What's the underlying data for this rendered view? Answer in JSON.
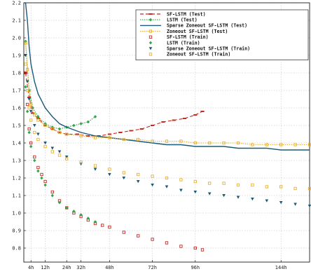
{
  "chart_data": {
    "type": "line",
    "xlabel": "",
    "ylabel": "",
    "title": "",
    "xlim": [
      0,
      160
    ],
    "ylim": [
      0.72,
      2.2
    ],
    "x_ticks": [
      {
        "value": 4,
        "label": "4h"
      },
      {
        "value": 12,
        "label": "12h"
      },
      {
        "value": 24,
        "label": "24h"
      },
      {
        "value": 32,
        "label": "32h"
      },
      {
        "value": 48,
        "label": "48h"
      },
      {
        "value": 72,
        "label": "72h"
      },
      {
        "value": 96,
        "label": "96h"
      },
      {
        "value": 144,
        "label": "144h"
      }
    ],
    "y_ticks": [
      0.8,
      0.9,
      1.0,
      1.1,
      1.2,
      1.3,
      1.4,
      1.5,
      1.6,
      1.7,
      1.8,
      1.9,
      2.0,
      2.1,
      2.2
    ],
    "grid": true,
    "legend_position": "top-right",
    "series": [
      {
        "name": "SF-LSTM (Test)",
        "role": "test",
        "color": "#c8281e",
        "marker": "dash",
        "x": [
          1,
          3,
          5,
          8,
          12,
          16,
          20,
          24,
          30,
          36,
          42,
          48,
          54,
          60,
          66,
          72,
          78,
          84,
          90,
          96,
          100
        ],
        "y": [
          1.8,
          1.66,
          1.57,
          1.54,
          1.5,
          1.48,
          1.46,
          1.45,
          1.45,
          1.44,
          1.44,
          1.45,
          1.46,
          1.47,
          1.48,
          1.5,
          1.52,
          1.53,
          1.54,
          1.56,
          1.58
        ]
      },
      {
        "name": "LSTM (Test)",
        "role": "test",
        "color": "#2ea84a",
        "marker": "diamond",
        "x": [
          1,
          3,
          5,
          8,
          12,
          16,
          20,
          24,
          28,
          32,
          36,
          40
        ],
        "y": [
          1.98,
          1.7,
          1.6,
          1.55,
          1.51,
          1.49,
          1.48,
          1.49,
          1.5,
          1.51,
          1.52,
          1.55
        ]
      },
      {
        "name": "Sparse Zoneout SF-LSTM (Test)",
        "role": "test",
        "color": "#1a5a78",
        "marker": "line",
        "x": [
          1,
          2,
          3,
          4,
          6,
          8,
          12,
          16,
          20,
          24,
          32,
          40,
          48,
          56,
          64,
          72,
          80,
          88,
          96,
          104,
          112,
          120,
          128,
          136,
          144,
          152,
          160
        ],
        "y": [
          2.2,
          2.1,
          1.95,
          1.85,
          1.75,
          1.68,
          1.6,
          1.55,
          1.51,
          1.49,
          1.46,
          1.44,
          1.43,
          1.42,
          1.41,
          1.4,
          1.39,
          1.39,
          1.38,
          1.38,
          1.38,
          1.37,
          1.37,
          1.37,
          1.36,
          1.36,
          1.36
        ]
      },
      {
        "name": "Zoneout SF-LSTM (Test)",
        "role": "test",
        "color": "#e8b030",
        "marker": "square",
        "x": [
          1,
          2,
          3,
          4,
          6,
          8,
          12,
          16,
          20,
          24,
          32,
          40,
          48,
          56,
          64,
          72,
          80,
          88,
          96,
          104,
          112,
          120,
          128,
          136,
          144,
          152,
          160
        ],
        "y": [
          1.97,
          1.82,
          1.7,
          1.62,
          1.56,
          1.53,
          1.5,
          1.48,
          1.46,
          1.45,
          1.44,
          1.43,
          1.43,
          1.42,
          1.42,
          1.41,
          1.41,
          1.41,
          1.4,
          1.4,
          1.4,
          1.4,
          1.39,
          1.39,
          1.39,
          1.39,
          1.39
        ]
      },
      {
        "name": "SF-LSTM (Train)",
        "role": "train",
        "color": "#c8281e",
        "marker": "square",
        "x": [
          1,
          2,
          3,
          4,
          6,
          8,
          10,
          12,
          16,
          20,
          24,
          28,
          32,
          36,
          40,
          44,
          48,
          56,
          64,
          72,
          80,
          88,
          96,
          100
        ],
        "y": [
          1.8,
          1.62,
          1.48,
          1.4,
          1.32,
          1.26,
          1.22,
          1.18,
          1.12,
          1.07,
          1.03,
          1.0,
          0.98,
          0.96,
          0.94,
          0.93,
          0.92,
          0.89,
          0.87,
          0.85,
          0.83,
          0.81,
          0.8,
          0.79
        ]
      },
      {
        "name": "LSTM (Train)",
        "role": "train",
        "color": "#2ea84a",
        "marker": "diamond",
        "x": [
          1,
          2,
          3,
          4,
          6,
          8,
          10,
          12,
          16,
          20,
          24,
          28,
          32,
          36,
          40
        ],
        "y": [
          1.72,
          1.58,
          1.46,
          1.38,
          1.3,
          1.24,
          1.2,
          1.16,
          1.1,
          1.06,
          1.03,
          1.01,
          0.99,
          0.97,
          0.95
        ]
      },
      {
        "name": "Sparse Zoneout SF-LSTM (Train)",
        "role": "train",
        "color": "#1a5a78",
        "marker": "triangle",
        "x": [
          1,
          2,
          3,
          4,
          6,
          8,
          12,
          16,
          20,
          24,
          32,
          40,
          48,
          56,
          64,
          72,
          80,
          88,
          96,
          104,
          112,
          120,
          128,
          136,
          144,
          152,
          160
        ],
        "y": [
          1.9,
          1.75,
          1.65,
          1.58,
          1.5,
          1.45,
          1.4,
          1.37,
          1.35,
          1.32,
          1.28,
          1.25,
          1.22,
          1.2,
          1.18,
          1.16,
          1.15,
          1.13,
          1.12,
          1.11,
          1.1,
          1.09,
          1.08,
          1.07,
          1.06,
          1.05,
          1.04
        ]
      },
      {
        "name": "Zoneout SF-LSTM (Train)",
        "role": "train",
        "color": "#e8b030",
        "marker": "square",
        "x": [
          1,
          2,
          3,
          4,
          6,
          8,
          12,
          16,
          20,
          24,
          32,
          40,
          48,
          56,
          64,
          72,
          80,
          88,
          96,
          104,
          112,
          120,
          128,
          136,
          144,
          152,
          160
        ],
        "y": [
          1.85,
          1.7,
          1.6,
          1.53,
          1.46,
          1.42,
          1.38,
          1.35,
          1.33,
          1.31,
          1.29,
          1.27,
          1.25,
          1.23,
          1.22,
          1.21,
          1.2,
          1.19,
          1.18,
          1.17,
          1.17,
          1.16,
          1.16,
          1.15,
          1.15,
          1.14,
          1.14
        ]
      }
    ]
  }
}
